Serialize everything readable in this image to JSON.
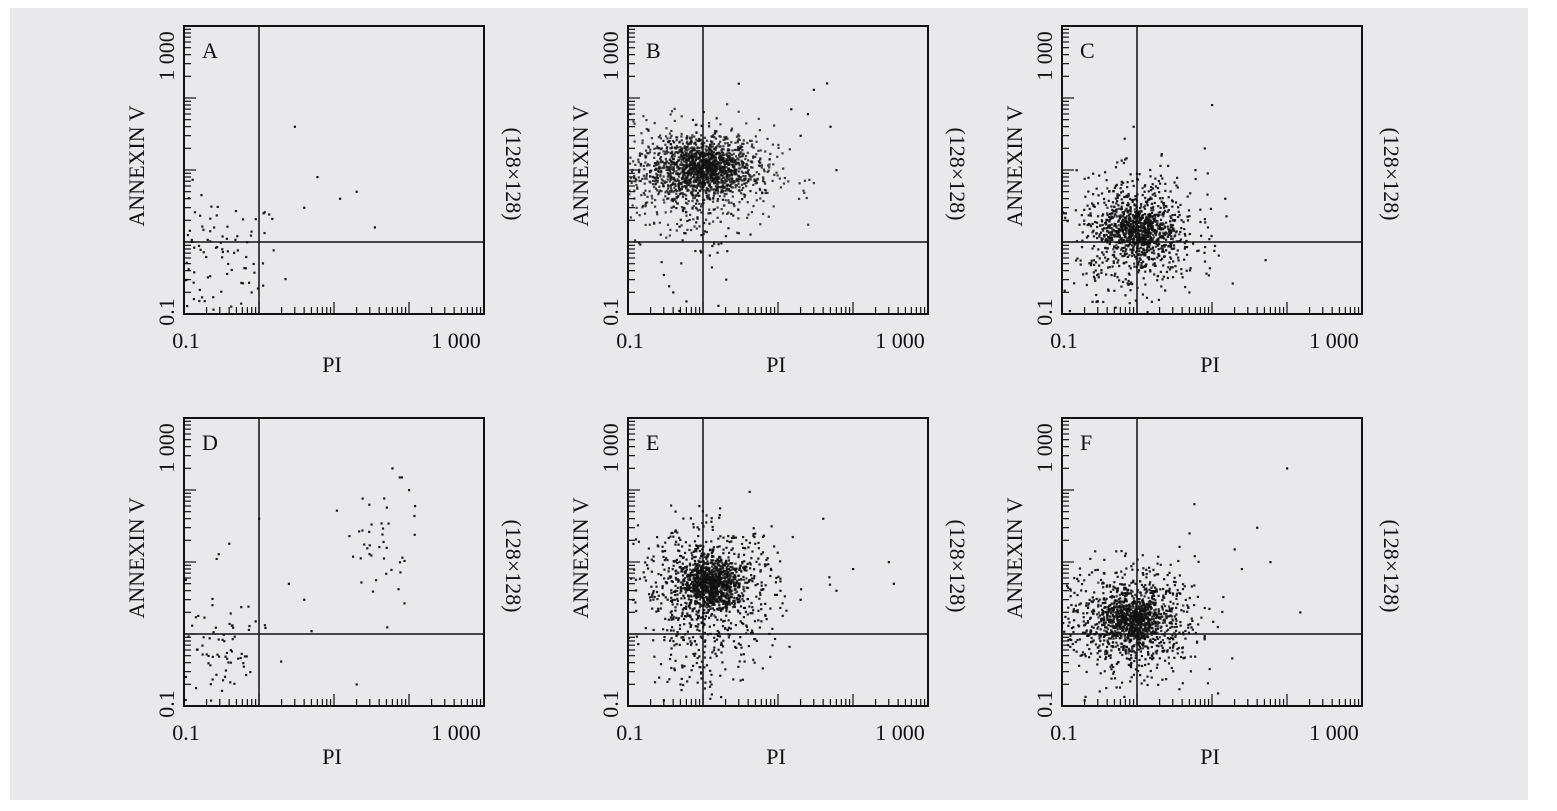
{
  "figure": {
    "colors": {
      "background": "#e9e9ec",
      "ink": "#111111"
    },
    "shared_axes": {
      "xlabel": "PI",
      "ylabel": "ANNEXIN V",
      "right_label": "(128×128)",
      "x_tick_labels": [
        "0.1",
        "1 000"
      ],
      "y_tick_labels": [
        "0.1",
        "1 000"
      ]
    }
  },
  "chart_data": [
    {
      "panel": "A",
      "type": "scatter",
      "xlabel": "PI",
      "ylabel": "ANNEXIN V",
      "right_label": "(128×128)",
      "xscale": "log",
      "yscale": "log",
      "xlim": [
        0.1,
        1000
      ],
      "ylim": [
        0.1,
        1000
      ],
      "quadrant_gate": {
        "x": 1.0,
        "y": 1.0
      },
      "populations": [
        {
          "center": [
            0.25,
            0.55
          ],
          "spread": [
            0.45,
            0.45
          ],
          "count": 110,
          "density": "sparse"
        }
      ],
      "outliers": [
        [
          3,
          40
        ],
        [
          6,
          8
        ],
        [
          20,
          5
        ],
        [
          12,
          4
        ],
        [
          35,
          1.6
        ],
        [
          4,
          3
        ],
        [
          1.5,
          2.1
        ]
      ]
    },
    {
      "panel": "B",
      "type": "scatter",
      "xlabel": "PI",
      "ylabel": "ANNEXIN V",
      "right_label": "(128×128)",
      "xscale": "log",
      "yscale": "log",
      "xlim": [
        0.1,
        1000
      ],
      "ylim": [
        0.1,
        1000
      ],
      "quadrant_gate": {
        "x": 1.0,
        "y": 1.0
      },
      "populations": [
        {
          "center": [
            1.1,
            11
          ],
          "spread": [
            0.3,
            0.18
          ],
          "count": 900,
          "density": "very dense"
        },
        {
          "center": [
            0.7,
            9
          ],
          "spread": [
            0.55,
            0.33
          ],
          "count": 900,
          "density": "dense"
        },
        {
          "center": [
            1.0,
            5
          ],
          "spread": [
            0.3,
            0.55
          ],
          "count": 120,
          "density": "sparse"
        }
      ],
      "outliers": [
        [
          30,
          130
        ],
        [
          45,
          160
        ],
        [
          25,
          60
        ],
        [
          50,
          40
        ],
        [
          60,
          10
        ],
        [
          15,
          70
        ],
        [
          20,
          30
        ],
        [
          0.4,
          0.2
        ],
        [
          0.6,
          0.15
        ],
        [
          1.6,
          0.13
        ],
        [
          0.3,
          0.35
        ]
      ]
    },
    {
      "panel": "C",
      "type": "scatter",
      "xlabel": "PI",
      "ylabel": "ANNEXIN V",
      "right_label": "(128×128)",
      "xscale": "log",
      "yscale": "log",
      "xlim": [
        0.1,
        1000
      ],
      "ylim": [
        0.1,
        1000
      ],
      "quadrant_gate": {
        "x": 1.0,
        "y": 1.0
      },
      "populations": [
        {
          "center": [
            1.0,
            1.5
          ],
          "spread": [
            0.2,
            0.16
          ],
          "count": 500,
          "density": "dense"
        },
        {
          "center": [
            1.0,
            1.3
          ],
          "spread": [
            0.4,
            0.4
          ],
          "count": 800,
          "density": "medium"
        }
      ],
      "outliers": [
        [
          10,
          80
        ],
        [
          8,
          20
        ],
        [
          6,
          10
        ],
        [
          15,
          4
        ],
        [
          0.9,
          40
        ],
        [
          3,
          2
        ],
        [
          0.3,
          0.15
        ]
      ]
    },
    {
      "panel": "D",
      "type": "scatter",
      "xlabel": "PI",
      "ylabel": "ANNEXIN V",
      "right_label": "(128×128)",
      "xscale": "log",
      "yscale": "log",
      "xlim": [
        0.1,
        1000
      ],
      "ylim": [
        0.1,
        1000
      ],
      "quadrant_gate": {
        "x": 1.0,
        "y": 1.0
      },
      "populations": [
        {
          "center": [
            0.25,
            0.55
          ],
          "spread": [
            0.35,
            0.5
          ],
          "count": 90,
          "density": "sparse"
        },
        {
          "center": [
            40,
            15
          ],
          "spread": [
            0.25,
            0.45
          ],
          "count": 40,
          "density": "sparse diagonal"
        }
      ],
      "outliers": [
        [
          1,
          40
        ],
        [
          0.4,
          18
        ],
        [
          2.5,
          5
        ],
        [
          0.9,
          1.5
        ],
        [
          20,
          0.2
        ],
        [
          5,
          1.1
        ],
        [
          4,
          3
        ],
        [
          80,
          150
        ],
        [
          100,
          100
        ],
        [
          60,
          200
        ],
        [
          120,
          60
        ]
      ]
    },
    {
      "panel": "E",
      "type": "scatter",
      "xlabel": "PI",
      "ylabel": "ANNEXIN V",
      "right_label": "(128×128)",
      "xscale": "log",
      "yscale": "log",
      "xlim": [
        0.1,
        1000
      ],
      "ylim": [
        0.1,
        1000
      ],
      "quadrant_gate": {
        "x": 1.0,
        "y": 1.0
      },
      "populations": [
        {
          "center": [
            1.3,
            5
          ],
          "spread": [
            0.18,
            0.15
          ],
          "count": 700,
          "density": "very dense"
        },
        {
          "center": [
            1.2,
            4.5
          ],
          "spread": [
            0.45,
            0.4
          ],
          "count": 900,
          "density": "medium"
        },
        {
          "center": [
            1.1,
            0.5
          ],
          "spread": [
            0.35,
            0.3
          ],
          "count": 90,
          "density": "sparse"
        }
      ],
      "outliers": [
        [
          40,
          40
        ],
        [
          300,
          10
        ],
        [
          100,
          8
        ],
        [
          60,
          4
        ],
        [
          350,
          5
        ],
        [
          20,
          3
        ],
        [
          0.3,
          0.12
        ],
        [
          0.5,
          0.2
        ]
      ]
    },
    {
      "panel": "F",
      "type": "scatter",
      "xlabel": "PI",
      "ylabel": "ANNEXIN V",
      "right_label": "(128×128)",
      "xscale": "log",
      "yscale": "log",
      "xlim": [
        0.1,
        1000
      ],
      "ylim": [
        0.1,
        1000
      ],
      "quadrant_gate": {
        "x": 1.0,
        "y": 1.0
      },
      "populations": [
        {
          "center": [
            0.9,
            1.6
          ],
          "spread": [
            0.2,
            0.16
          ],
          "count": 600,
          "density": "dense"
        },
        {
          "center": [
            0.8,
            1.5
          ],
          "spread": [
            0.45,
            0.38
          ],
          "count": 900,
          "density": "medium"
        }
      ],
      "outliers": [
        [
          100,
          200
        ],
        [
          40,
          30
        ],
        [
          20,
          15
        ],
        [
          60,
          10
        ],
        [
          25,
          8
        ],
        [
          5,
          25
        ],
        [
          150,
          2
        ],
        [
          12,
          0.15
        ],
        [
          0.2,
          0.12
        ]
      ]
    }
  ]
}
